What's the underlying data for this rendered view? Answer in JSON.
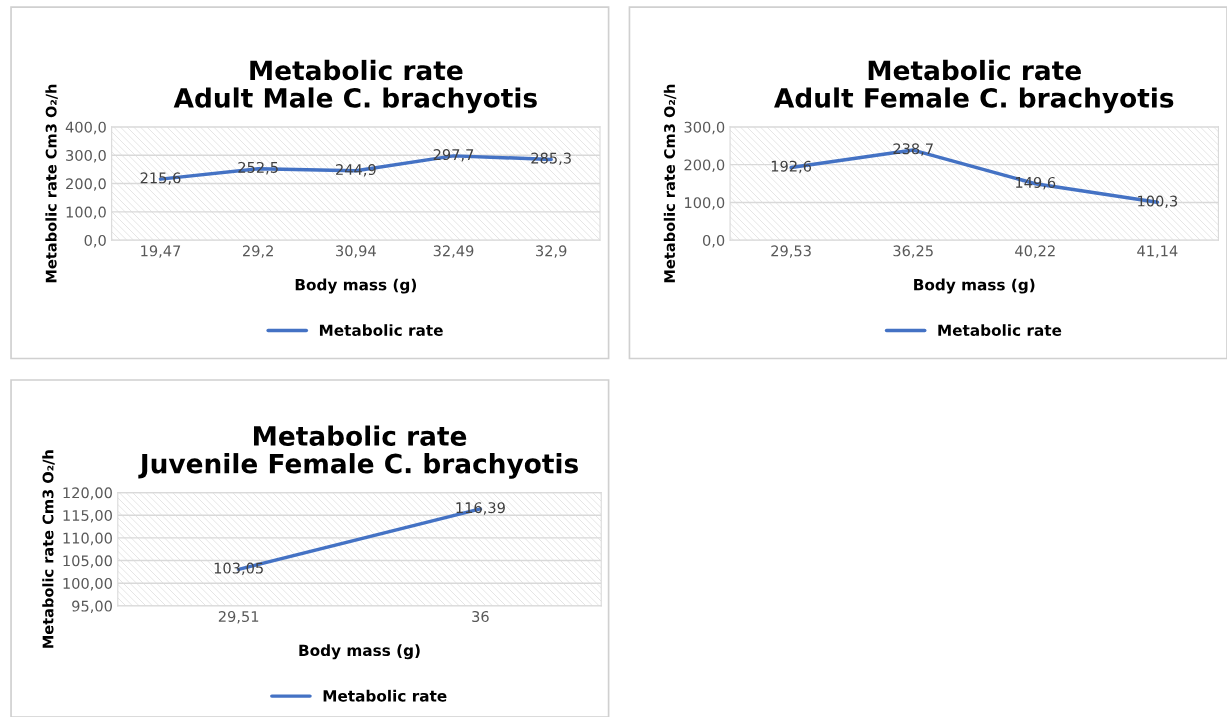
{
  "chart_data": [
    {
      "type": "line",
      "title": "Metabolic rate\nAdult Male C. brachyotis",
      "xlabel": "Body mass (g)",
      "ylabel": "Metabolic rate Cm3 O₂/h",
      "categories": [
        "19,47",
        "29,2",
        "30,94",
        "32,49",
        "32,9"
      ],
      "series": [
        {
          "name": "Metabolic rate",
          "color": "#4472c4",
          "values": [
            215.6,
            252.5,
            244.9,
            297.7,
            285.3
          ],
          "value_labels": [
            "215,6",
            "252,5",
            "244,9",
            "297,7",
            "285,3"
          ]
        }
      ],
      "ylim": [
        0,
        400
      ],
      "yticks": [
        {
          "value": 0,
          "label": "0,0"
        },
        {
          "value": 100,
          "label": "100,0"
        },
        {
          "value": 200,
          "label": "200,0"
        },
        {
          "value": 300,
          "label": "300,0"
        },
        {
          "value": 400,
          "label": "400,0"
        }
      ],
      "grid": "y",
      "legend": "bottom",
      "marker": "none",
      "line_style": "solid"
    },
    {
      "type": "line",
      "title": "Metabolic rate\nAdult Female C. brachyotis",
      "xlabel": "Body mass (g)",
      "ylabel": "Metabolic rate Cm3 O₂/h",
      "categories": [
        "29,53",
        "36,25",
        "40,22",
        "41,14"
      ],
      "series": [
        {
          "name": "Metabolic rate",
          "color": "#4472c4",
          "values": [
            192.6,
            238.7,
            149.6,
            100.3
          ],
          "value_labels": [
            "192,6",
            "238,7",
            "149,6",
            "100,3"
          ]
        }
      ],
      "ylim": [
        0,
        300
      ],
      "yticks": [
        {
          "value": 0,
          "label": "0,0"
        },
        {
          "value": 100,
          "label": "100,0"
        },
        {
          "value": 200,
          "label": "200,0"
        },
        {
          "value": 300,
          "label": "300,0"
        }
      ],
      "grid": "y",
      "legend": "bottom",
      "marker": "none",
      "line_style": "solid"
    },
    {
      "type": "line",
      "title": "Metabolic rate\nJuvenile Female C. brachyotis",
      "xlabel": "Body mass (g)",
      "ylabel": "Metabolic rate Cm3 O₂/h",
      "categories": [
        "29,51",
        "36"
      ],
      "series": [
        {
          "name": "Metabolic rate",
          "color": "#4472c4",
          "values": [
            103.05,
            116.39
          ],
          "value_labels": [
            "103,05",
            "116,39"
          ]
        }
      ],
      "ylim": [
        95,
        120
      ],
      "yticks": [
        {
          "value": 95,
          "label": "95,00"
        },
        {
          "value": 100,
          "label": "100,00"
        },
        {
          "value": 105,
          "label": "105,00"
        },
        {
          "value": 110,
          "label": "110,00"
        },
        {
          "value": 115,
          "label": "115,00"
        },
        {
          "value": 120,
          "label": "120,00"
        }
      ],
      "grid": "y",
      "legend": "bottom",
      "marker": "none",
      "line_style": "solid"
    }
  ]
}
